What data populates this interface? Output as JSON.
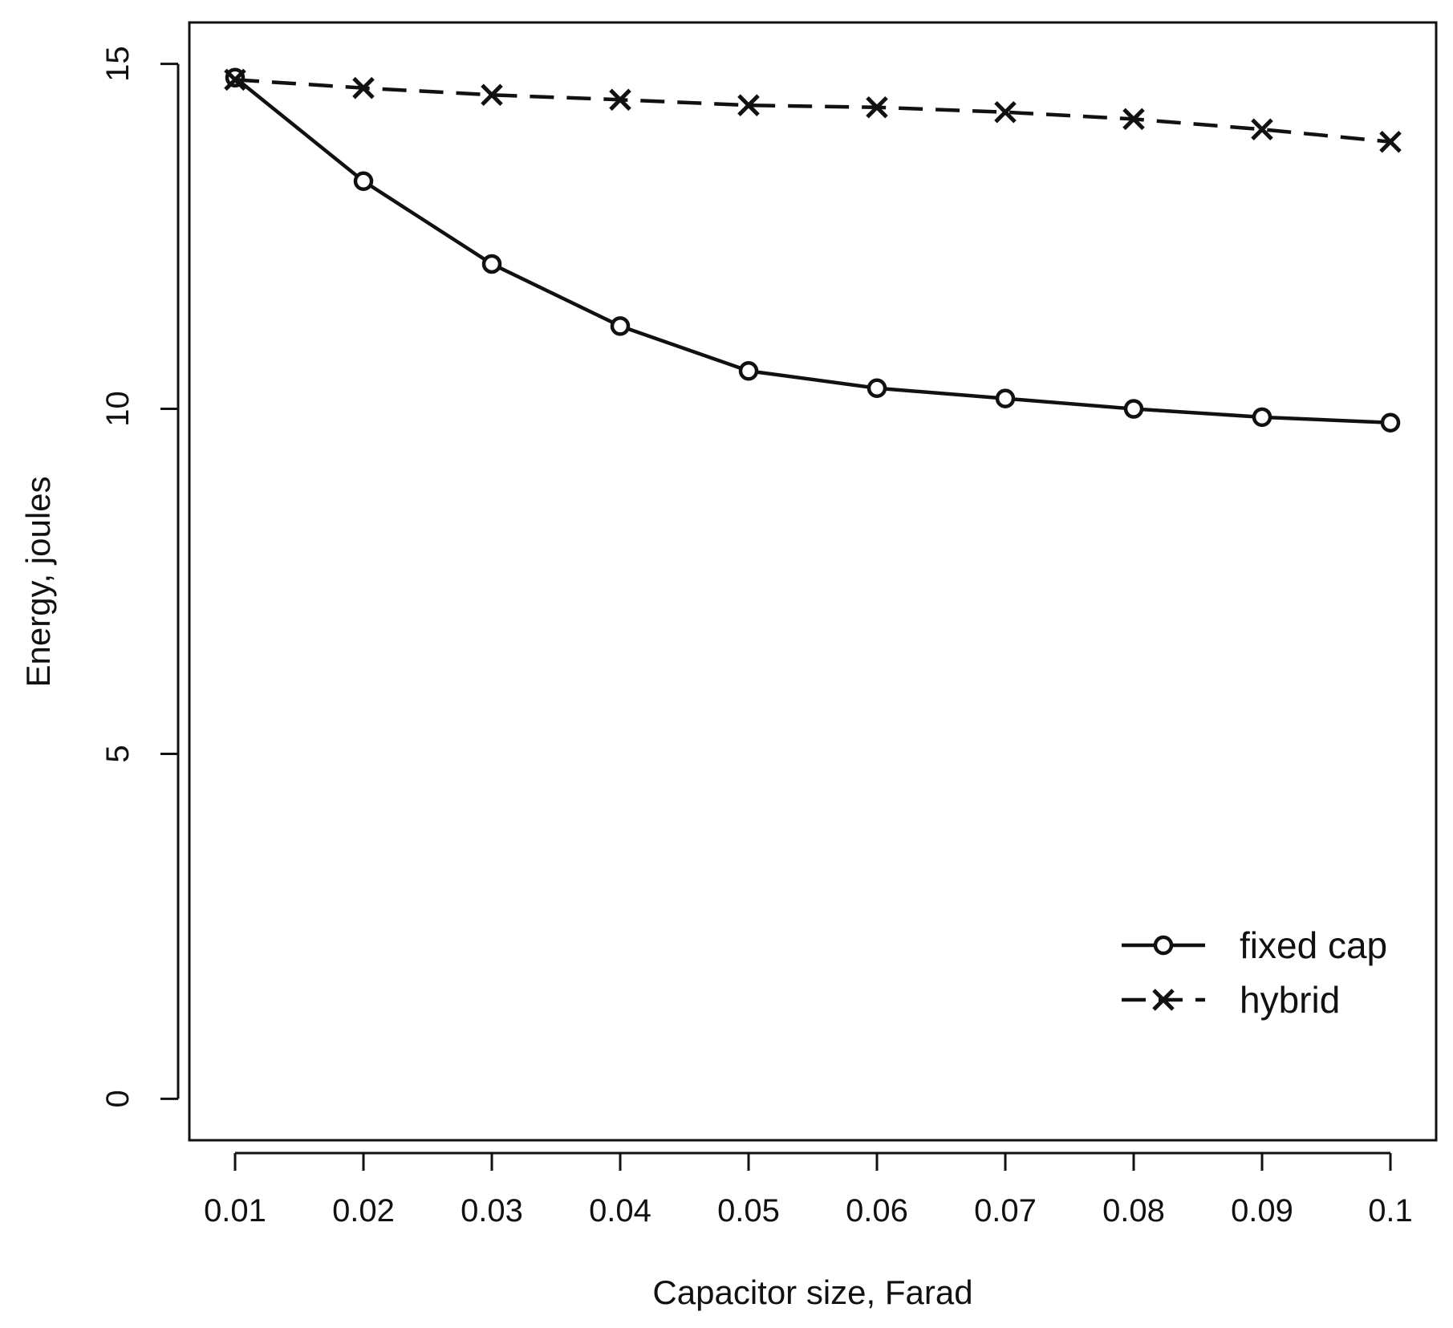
{
  "chart_data": {
    "type": "line",
    "title": "",
    "xlabel": "Capacitor size, Farad",
    "ylabel": "Energy, joules",
    "categories": [
      "0.01",
      "0.02",
      "0.03",
      "0.04",
      "0.05",
      "0.06",
      "0.07",
      "0.08",
      "0.09",
      "0.1"
    ],
    "ylim": [
      -0.6,
      15.6
    ],
    "yticks": [
      "0",
      "5",
      "10",
      "15"
    ],
    "legend_position": "bottom-right",
    "grid": false,
    "series": [
      {
        "name": "fixed cap",
        "marker": "circle",
        "line_style": "solid",
        "values": [
          14.8,
          13.3,
          12.1,
          11.2,
          10.55,
          10.3,
          10.15,
          10.0,
          9.88,
          9.8
        ]
      },
      {
        "name": "hybrid",
        "marker": "cross",
        "line_style": "dashed",
        "values": [
          14.77,
          14.65,
          14.55,
          14.48,
          14.4,
          14.37,
          14.3,
          14.2,
          14.05,
          13.87
        ]
      }
    ],
    "colors": {
      "ink": "#111111",
      "background": "#ffffff"
    }
  }
}
